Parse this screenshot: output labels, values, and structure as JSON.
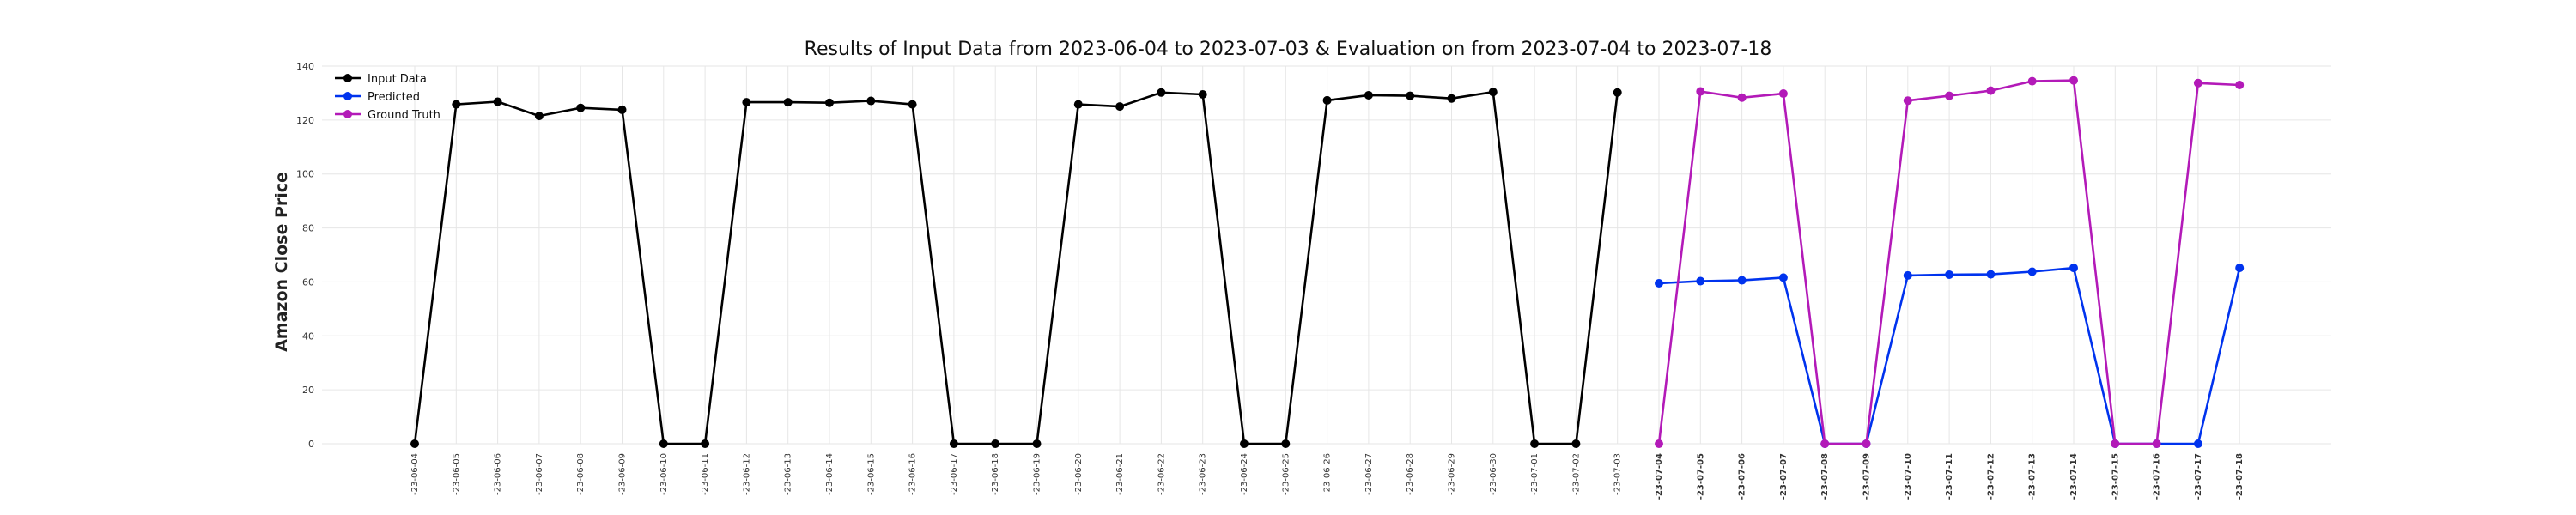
{
  "chart_data": {
    "type": "line",
    "title": "Results of Input Data from 2023-06-04 to 2023-07-03 & Evaluation on from 2023-07-04 to 2023-07-18",
    "xlabel": "",
    "ylabel": "Amazon Close Price",
    "ylim": [
      0,
      140
    ],
    "yticks": [
      0,
      20,
      40,
      60,
      80,
      100,
      120,
      140
    ],
    "grid": true,
    "legend_position": "top-left",
    "categories": [
      "2023-06-04",
      "2023-06-05",
      "2023-06-06",
      "2023-06-07",
      "2023-06-08",
      "2023-06-09",
      "2023-06-10",
      "2023-06-11",
      "2023-06-12",
      "2023-06-13",
      "2023-06-14",
      "2023-06-15",
      "2023-06-16",
      "2023-06-17",
      "2023-06-18",
      "2023-06-19",
      "2023-06-20",
      "2023-06-21",
      "2023-06-22",
      "2023-06-23",
      "2023-06-24",
      "2023-06-25",
      "2023-06-26",
      "2023-06-27",
      "2023-06-28",
      "2023-06-29",
      "2023-06-30",
      "2023-07-01",
      "2023-07-02",
      "2023-07-03",
      "2023-07-04",
      "2023-07-05",
      "2023-07-06",
      "2023-07-07",
      "2023-07-08",
      "2023-07-09",
      "2023-07-10",
      "2023-07-11",
      "2023-07-12",
      "2023-07-13",
      "2023-07-14",
      "2023-07-15",
      "2023-07-16",
      "2023-07-17",
      "2023-07-18"
    ],
    "tick_labels": [
      "-23-06-04",
      "-23-06-05",
      "-23-06-06",
      "-23-06-07",
      "-23-06-08",
      "-23-06-09",
      "-23-06-10",
      "-23-06-11",
      "-23-06-12",
      "-23-06-13",
      "-23-06-14",
      "-23-06-15",
      "-23-06-16",
      "-23-06-17",
      "-23-06-18",
      "-23-06-19",
      "-23-06-20",
      "-23-06-21",
      "-23-06-22",
      "-23-06-23",
      "-23-06-24",
      "-23-06-25",
      "-23-06-26",
      "-23-06-27",
      "-23-06-28",
      "-23-06-29",
      "-23-06-30",
      "-23-07-01",
      "-23-07-02",
      "-23-07-03",
      "-23-07-04",
      "-23-07-05",
      "-23-07-06",
      "-23-07-07",
      "-23-07-08",
      "-23-07-09",
      "-23-07-10",
      "-23-07-11",
      "-23-07-12",
      "-23-07-13",
      "-23-07-14",
      "-23-07-15",
      "-23-07-16",
      "-23-07-17",
      "-23-07-18"
    ],
    "bold_tick_from": "2023-07-04",
    "series": [
      {
        "name": "Input Data",
        "color": "#000000",
        "x": [
          "2023-06-04",
          "2023-06-05",
          "2023-06-06",
          "2023-06-07",
          "2023-06-08",
          "2023-06-09",
          "2023-06-10",
          "2023-06-11",
          "2023-06-12",
          "2023-06-13",
          "2023-06-14",
          "2023-06-15",
          "2023-06-16",
          "2023-06-17",
          "2023-06-18",
          "2023-06-19",
          "2023-06-20",
          "2023-06-21",
          "2023-06-22",
          "2023-06-23",
          "2023-06-24",
          "2023-06-25",
          "2023-06-26",
          "2023-06-27",
          "2023-06-28",
          "2023-06-29",
          "2023-06-30",
          "2023-07-01",
          "2023-07-02",
          "2023-07-03"
        ],
        "values": [
          0,
          125.8,
          126.8,
          121.5,
          124.5,
          123.8,
          0,
          0,
          126.6,
          126.6,
          126.4,
          127.1,
          125.8,
          0,
          0,
          0,
          125.8,
          125.0,
          130.2,
          129.5,
          0,
          0,
          127.3,
          129.2,
          129.0,
          128.0,
          130.4,
          0,
          0,
          130.2
        ]
      },
      {
        "name": "Predicted",
        "color": "#0033ee",
        "x": [
          "2023-07-04",
          "2023-07-05",
          "2023-07-06",
          "2023-07-07",
          "2023-07-08",
          "2023-07-09",
          "2023-07-10",
          "2023-07-11",
          "2023-07-12",
          "2023-07-13",
          "2023-07-14",
          "2023-07-15",
          "2023-07-16",
          "2023-07-17",
          "2023-07-18"
        ],
        "values": [
          59.5,
          60.3,
          60.6,
          61.6,
          0,
          0,
          62.4,
          62.7,
          62.8,
          63.8,
          65.2,
          0,
          0,
          0,
          65.2
        ]
      },
      {
        "name": "Ground Truth",
        "color": "#b31ab8",
        "x": [
          "2023-07-04",
          "2023-07-05",
          "2023-07-06",
          "2023-07-07",
          "2023-07-08",
          "2023-07-09",
          "2023-07-10",
          "2023-07-11",
          "2023-07-12",
          "2023-07-13",
          "2023-07-14",
          "2023-07-15",
          "2023-07-16",
          "2023-07-17",
          "2023-07-18"
        ],
        "values": [
          0,
          130.6,
          128.3,
          129.8,
          0,
          0,
          127.2,
          129.0,
          130.9,
          134.4,
          134.7,
          0,
          0,
          133.7,
          133.0
        ]
      }
    ]
  }
}
